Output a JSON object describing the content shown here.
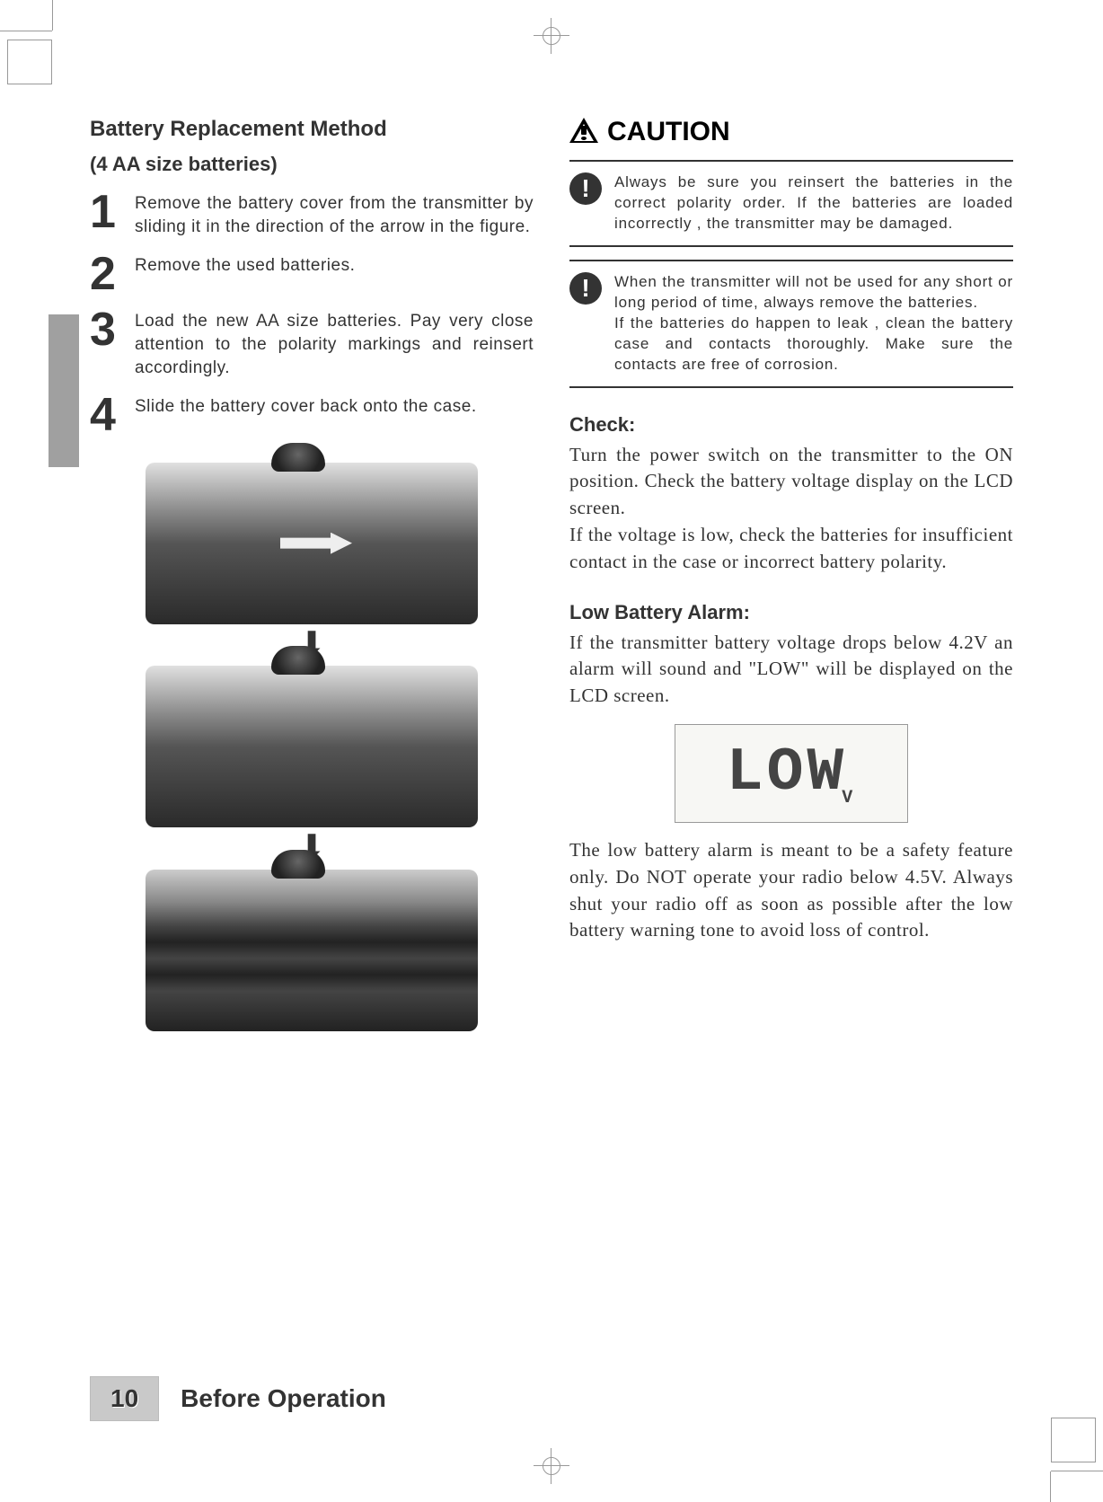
{
  "left": {
    "title": "Battery Replacement Method",
    "subtitle": "(4 AA size batteries)",
    "steps": [
      {
        "num": "1",
        "text": "Remove the battery cover from the transmitter by sliding it in the direction of the arrow in the figure."
      },
      {
        "num": "2",
        "text": "Remove the used batteries."
      },
      {
        "num": "3",
        "text": "Load the new AA size batteries. Pay very close attention to the polarity markings and reinsert accordingly."
      },
      {
        "num": "4",
        "text": "Slide the battery cover back onto the case."
      }
    ]
  },
  "right": {
    "caution_label": "CAUTION",
    "cautions": [
      "Always be sure you reinsert the batteries in the correct polarity order. If the batteries are loaded incorrectly , the transmitter may be damaged.",
      "When the transmitter will not be used for any short or long period of time, always remove the batteries.\nIf the batteries do happen to leak , clean the battery case and contacts thoroughly. Make sure the contacts are free of corrosion."
    ],
    "check_heading": "Check:",
    "check_text": "Turn the power switch on the transmitter to the ON position. Check the battery voltage display on the LCD screen.\nIf the voltage is low, check the batteries for insufficient contact in the case or incorrect battery polarity.",
    "low_heading": "Low Battery Alarm:",
    "low_text_1": "If the transmitter battery voltage drops below 4.2V an alarm will sound and \"LOW\" will be displayed on the LCD screen.",
    "lcd_display": "LOW",
    "lcd_unit": "V",
    "low_text_2": "The low battery alarm is meant to be a safety feature only. Do NOT operate your radio below 4.5V. Always shut your radio off as soon as possible after the low battery warning tone to avoid loss of control."
  },
  "footer": {
    "page_number": "10",
    "section": "Before Operation"
  },
  "colors": {
    "text": "#333333",
    "background": "#ffffff",
    "side_tab": "#a0a0a0",
    "page_num_bg": "#c9c9c9",
    "crop_marks": "#999999"
  },
  "typography": {
    "heading_fontsize_pt": 18,
    "body_fontsize_pt": 15,
    "step_num_fontsize_pt": 38,
    "caution_title_fontsize_pt": 22,
    "footer_title_fontsize_pt": 21,
    "body_font": "serif",
    "ui_font": "sans-serif"
  }
}
